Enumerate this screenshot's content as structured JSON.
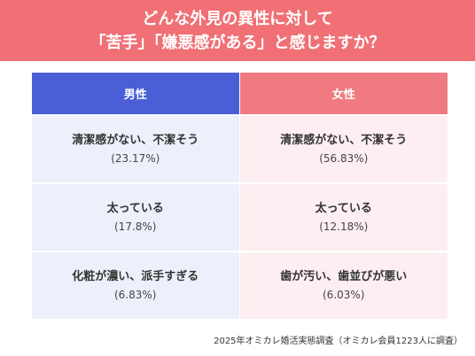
{
  "title": {
    "line1": "どんな外見の異性に対して",
    "line2": "「苦手」「嫌悪感がある」と感じますか？"
  },
  "table": {
    "headers": {
      "male": "男性",
      "female": "女性"
    },
    "rows": [
      {
        "male_reason": "清潔感がない、不潔そう",
        "male_pct": "(23.17%)",
        "female_reason": "清潔感がない、不潔そう",
        "female_pct": "(56.83%)"
      },
      {
        "male_reason": "太っている",
        "male_pct": "(17.8%)",
        "female_reason": "太っている",
        "female_pct": "(12.18%)"
      },
      {
        "male_reason": "化粧が濃い、派手すぎる",
        "male_pct": "(6.83%)",
        "female_reason": "歯が汚い、歯並びが悪い",
        "female_pct": "(6.03%)"
      }
    ]
  },
  "footnote": "2025年オミカレ婚活実態調査（オミカレ会員1223人に調査）",
  "colors": {
    "header": "#f07075",
    "male_head": "#4a5fd6",
    "female_head": "#f07a82",
    "male_bg": "#edf0fb",
    "female_bg": "#fdeff1"
  }
}
